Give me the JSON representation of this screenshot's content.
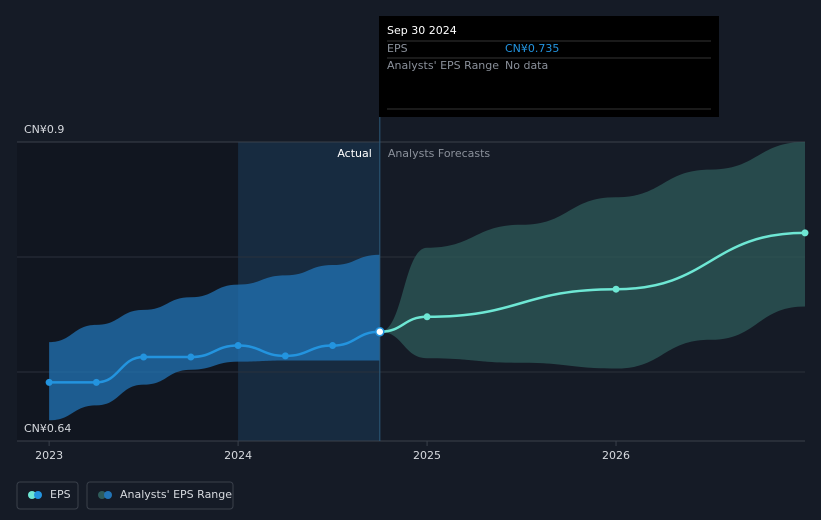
{
  "chart_data": {
    "type": "line",
    "ylim": [
      0.64,
      0.9
    ],
    "yticks": [
      {
        "value": 0.9,
        "label": "CN¥0.9"
      },
      {
        "value": 0.64,
        "label": "CN¥0.64"
      }
    ],
    "grid_lines": [
      0.7,
      0.8
    ],
    "xlim": [
      2022.83,
      2027
    ],
    "xticks": [
      2023,
      2024,
      2025,
      2026
    ],
    "actual_label": "Actual",
    "forecast_label": "Analysts Forecasts",
    "series": [
      {
        "name": "EPS",
        "color": "#2394df",
        "x": [
          2023,
          2023.25,
          2023.5,
          2023.75,
          2024,
          2024.25,
          2024.5,
          2024.75
        ],
        "values": [
          0.691,
          0.691,
          0.713,
          0.713,
          0.723,
          0.714,
          0.723,
          0.735
        ]
      }
    ],
    "forecast": {
      "color": "#6ee7d4",
      "x": [
        2024.75,
        2025,
        2026,
        2027
      ],
      "values": [
        0.735,
        0.748,
        0.772,
        0.821
      ]
    },
    "range": {
      "name": "Analysts' EPS Range",
      "actual": {
        "color": "#2274b5",
        "x": [
          2023,
          2023.25,
          2023.5,
          2023.75,
          2024,
          2024.25,
          2024.5,
          2024.75
        ],
        "low": [
          0.658,
          0.671,
          0.689,
          0.702,
          0.709,
          0.71,
          0.71,
          0.71
        ],
        "high": [
          0.726,
          0.741,
          0.754,
          0.765,
          0.776,
          0.784,
          0.793,
          0.802
        ]
      },
      "forecast": {
        "color": "#2e5b5a",
        "x": [
          2024.75,
          2025,
          2025.5,
          2026,
          2026.5,
          2027
        ],
        "low": [
          0.735,
          0.712,
          0.708,
          0.703,
          0.728,
          0.757
        ],
        "high": [
          0.735,
          0.808,
          0.828,
          0.852,
          0.876,
          0.9
        ]
      }
    },
    "tooltip": {
      "date": "Sep 30 2024",
      "rows": [
        {
          "label": "EPS",
          "value": "CN¥0.735"
        },
        {
          "label": "Analysts' EPS Range",
          "value": "No data"
        }
      ]
    }
  }
}
